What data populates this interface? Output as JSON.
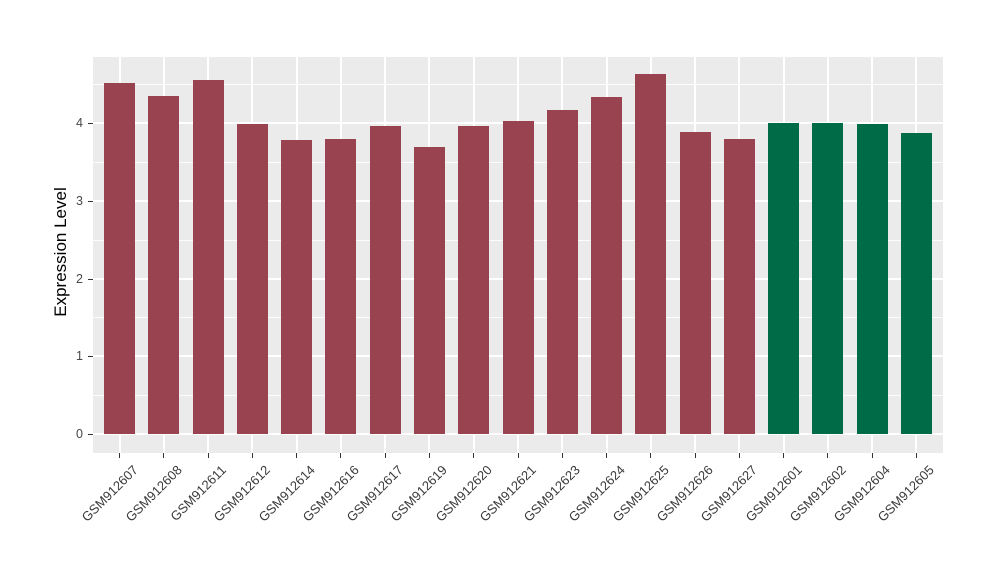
{
  "chart_data": {
    "type": "bar",
    "title": "",
    "xlabel": "",
    "ylabel": "Expression Level",
    "categories": [
      "GSM912607",
      "GSM912608",
      "GSM912611",
      "GSM912612",
      "GSM912614",
      "GSM912616",
      "GSM912617",
      "GSM912619",
      "GSM912620",
      "GSM912621",
      "GSM912623",
      "GSM912624",
      "GSM912625",
      "GSM912626",
      "GSM912627",
      "GSM912601",
      "GSM912602",
      "GSM912604",
      "GSM912605"
    ],
    "values": [
      4.52,
      4.35,
      4.56,
      3.99,
      3.78,
      3.8,
      3.97,
      3.69,
      3.96,
      4.03,
      4.17,
      4.34,
      4.63,
      3.89,
      3.8,
      4.01,
      4.01,
      3.99,
      3.87
    ],
    "bar_groups": [
      "red",
      "red",
      "red",
      "red",
      "red",
      "red",
      "red",
      "red",
      "red",
      "red",
      "red",
      "red",
      "red",
      "red",
      "red",
      "green",
      "green",
      "green",
      "green"
    ],
    "group_colors": {
      "red": "#9A4350",
      "green": "#006B47"
    },
    "yticks": [
      0,
      1,
      2,
      3,
      4
    ],
    "minor_yticks": [
      0.5,
      1.5,
      2.5,
      3.5,
      4.5
    ],
    "ylim": [
      -0.23,
      4.85
    ],
    "grid": "horizontal major+minor, vertical major at each category",
    "legend": "none",
    "panel_bg": "#EBEBEB",
    "grid_color": "#FFFFFF",
    "axis_text_color": "#3a3a3a",
    "tick_mark_color": "#333333"
  }
}
